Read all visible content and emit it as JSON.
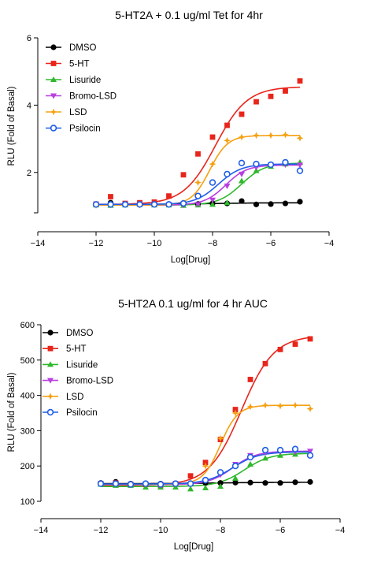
{
  "chart_data": [
    {
      "type": "scatter",
      "title": "5-HT2A + 0.1 ug/ml Tet for 4hr",
      "xlabel": "Log[Drug]",
      "ylabel": "RLU (Fold of Basal)",
      "xlim": [
        -14,
        -4
      ],
      "ylim": [
        0.8,
        6
      ],
      "xticks": [
        -14,
        -12,
        -10,
        -8,
        -6,
        -4
      ],
      "yticks": [
        2,
        4,
        6
      ],
      "legend_position": "top-left",
      "series": [
        {
          "name": "DMSO",
          "color": "#000000",
          "marker": "circle-filled",
          "x": [
            -12,
            -11.5,
            -11,
            -10.5,
            -10,
            -9.5,
            -9,
            -8.5,
            -8,
            -7.5,
            -7,
            -6.5,
            -6,
            -5.5,
            -5
          ],
          "y": [
            1.05,
            1.1,
            1.05,
            1.06,
            1.05,
            1.06,
            1.06,
            1.06,
            1.08,
            1.08,
            1.15,
            1.05,
            1.06,
            1.08,
            1.13
          ],
          "fit": {
            "bottom": 1.05,
            "top": 1.1,
            "logec50": -8,
            "hill": 0.5
          }
        },
        {
          "name": "5-HT",
          "color": "#e8251b",
          "marker": "square-filled",
          "x": [
            -12,
            -11.5,
            -11,
            -10.5,
            -10,
            -9.5,
            -9,
            -8.5,
            -8,
            -7.5,
            -7,
            -6.5,
            -6,
            -5.5,
            -5
          ],
          "y": [
            1.06,
            1.28,
            1.08,
            1.1,
            1.12,
            1.3,
            1.93,
            2.55,
            3.05,
            3.4,
            3.73,
            4.1,
            4.26,
            4.42,
            4.72
          ],
          "fit": {
            "bottom": 1.05,
            "top": 4.55,
            "logec50": -7.9,
            "hill": 0.8
          }
        },
        {
          "name": "Lisuride",
          "color": "#2fb82c",
          "marker": "triangle-up",
          "x": [
            -12,
            -11.5,
            -11,
            -10.5,
            -10,
            -9.5,
            -9,
            -8.5,
            -8,
            -7.5,
            -7,
            -6.5,
            -6,
            -5.5,
            -5
          ],
          "y": [
            1.03,
            1.02,
            1.03,
            1.05,
            1.03,
            1.03,
            1.02,
            1.03,
            1.05,
            1.1,
            1.75,
            2.05,
            2.18,
            2.25,
            2.3
          ],
          "fit": {
            "bottom": 1.03,
            "top": 2.28,
            "logec50": -7.0,
            "hill": 1.1
          }
        },
        {
          "name": "Bromo-LSD",
          "color": "#b83fe0",
          "marker": "triangle-down",
          "x": [
            -12,
            -11.5,
            -11,
            -10.5,
            -10,
            -9.5,
            -9,
            -8.5,
            -8,
            -7.5,
            -7,
            -6.5,
            -6,
            -5.5,
            -5
          ],
          "y": [
            1.03,
            1.03,
            1.05,
            1.03,
            1.05,
            1.05,
            1.03,
            1.05,
            1.18,
            1.6,
            1.95,
            2.15,
            2.22,
            2.23,
            2.22
          ],
          "fit": {
            "bottom": 1.03,
            "top": 2.22,
            "logec50": -7.55,
            "hill": 1.2
          }
        },
        {
          "name": "LSD",
          "color": "#f5a012",
          "marker": "diamond-star",
          "x": [
            -12,
            -11.5,
            -11,
            -10.5,
            -10,
            -9.5,
            -9,
            -8.5,
            -8,
            -7.5,
            -7,
            -6.5,
            -6,
            -5.5,
            -5
          ],
          "y": [
            1.02,
            1.05,
            1.05,
            1.03,
            1.05,
            1.05,
            1.1,
            1.7,
            2.25,
            2.95,
            3.05,
            3.1,
            3.1,
            3.12,
            3.02
          ],
          "fit": {
            "bottom": 1.03,
            "top": 3.1,
            "logec50": -8.1,
            "hill": 1.4
          }
        },
        {
          "name": "Psilocin",
          "color": "#1f5ee8",
          "marker": "circle-open",
          "x": [
            -12,
            -11.5,
            -11,
            -10.5,
            -10,
            -9.5,
            -9,
            -8.5,
            -8,
            -7.5,
            -7,
            -6.5,
            -6,
            -5.5,
            -5
          ],
          "y": [
            1.05,
            1.05,
            1.05,
            1.05,
            1.05,
            1.05,
            1.08,
            1.3,
            1.7,
            1.95,
            2.28,
            2.25,
            2.23,
            2.3,
            2.05
          ],
          "fit": {
            "bottom": 1.05,
            "top": 2.25,
            "logec50": -7.8,
            "hill": 1.1
          }
        }
      ]
    },
    {
      "type": "scatter",
      "title": "5-HT2A 0.1 ug/ml for 4 hr AUC",
      "xlabel": "Log[Drug]",
      "ylabel": "RLU (Fold of Basal)",
      "xlim": [
        -14,
        -4
      ],
      "ylim": [
        100,
        600
      ],
      "xticks": [
        -14,
        -12,
        -10,
        -8,
        -6,
        -4
      ],
      "yticks": [
        100,
        200,
        300,
        400,
        500,
        600
      ],
      "legend_position": "top-left",
      "series": [
        {
          "name": "DMSO",
          "color": "#000000",
          "marker": "circle-filled",
          "x": [
            -12,
            -11.5,
            -11,
            -10.5,
            -10,
            -9.5,
            -9,
            -8.5,
            -8,
            -7.5,
            -7,
            -6.5,
            -6,
            -5.5,
            -5
          ],
          "y": [
            152,
            155,
            150,
            150,
            150,
            150,
            150,
            152,
            152,
            153,
            153,
            152,
            152,
            154,
            155
          ],
          "fit": {
            "bottom": 150,
            "top": 154,
            "logec50": -8,
            "hill": 0.5
          }
        },
        {
          "name": "5-HT",
          "color": "#e8251b",
          "marker": "square-filled",
          "x": [
            -12,
            -11.5,
            -11,
            -10.5,
            -10,
            -9.5,
            -9,
            -8.5,
            -8,
            -7.5,
            -7,
            -6.5,
            -6,
            -5.5,
            -5
          ],
          "y": [
            150,
            152,
            148,
            148,
            145,
            150,
            172,
            210,
            275,
            360,
            445,
            490,
            530,
            545,
            560
          ],
          "fit": {
            "bottom": 145,
            "top": 570,
            "logec50": -7.3,
            "hill": 0.8
          }
        },
        {
          "name": "Lisuride",
          "color": "#2fb82c",
          "marker": "triangle-up",
          "x": [
            -12,
            -11.5,
            -11,
            -10.5,
            -10,
            -9.5,
            -9,
            -8.5,
            -8,
            -7.5,
            -7,
            -6.5,
            -6,
            -5.5,
            -5
          ],
          "y": [
            148,
            145,
            145,
            140,
            140,
            140,
            135,
            138,
            142,
            165,
            205,
            222,
            230,
            233,
            235
          ],
          "fit": {
            "bottom": 142,
            "top": 236,
            "logec50": -7.2,
            "hill": 1.0
          }
        },
        {
          "name": "Bromo-LSD",
          "color": "#b83fe0",
          "marker": "triangle-down",
          "x": [
            -12,
            -11.5,
            -11,
            -10.5,
            -10,
            -9.5,
            -9,
            -8.5,
            -8,
            -7.5,
            -7,
            -6.5,
            -6,
            -5.5,
            -5
          ],
          "y": [
            150,
            150,
            148,
            148,
            148,
            148,
            148,
            158,
            175,
            205,
            230,
            238,
            240,
            240,
            242
          ],
          "fit": {
            "bottom": 147,
            "top": 242,
            "logec50": -7.6,
            "hill": 1.1
          }
        },
        {
          "name": "LSD",
          "color": "#f5a012",
          "marker": "diamond-star",
          "x": [
            -12,
            -11.5,
            -11,
            -10.5,
            -10,
            -9.5,
            -9,
            -8.5,
            -8,
            -7.5,
            -7,
            -6.5,
            -6,
            -5.5,
            -5
          ],
          "y": [
            150,
            150,
            148,
            148,
            148,
            148,
            152,
            200,
            278,
            350,
            368,
            372,
            370,
            372,
            362
          ],
          "fit": {
            "bottom": 148,
            "top": 372,
            "logec50": -8.0,
            "hill": 1.5
          }
        },
        {
          "name": "Psilocin",
          "color": "#1f5ee8",
          "marker": "circle-open",
          "x": [
            -12,
            -11.5,
            -11,
            -10.5,
            -10,
            -9.5,
            -9,
            -8.5,
            -8,
            -7.5,
            -7,
            -6.5,
            -6,
            -5.5,
            -5
          ],
          "y": [
            150,
            150,
            148,
            150,
            148,
            150,
            150,
            160,
            182,
            200,
            225,
            245,
            245,
            248,
            230
          ],
          "fit": {
            "bottom": 149,
            "top": 240,
            "logec50": -7.6,
            "hill": 1.0
          }
        }
      ]
    }
  ]
}
